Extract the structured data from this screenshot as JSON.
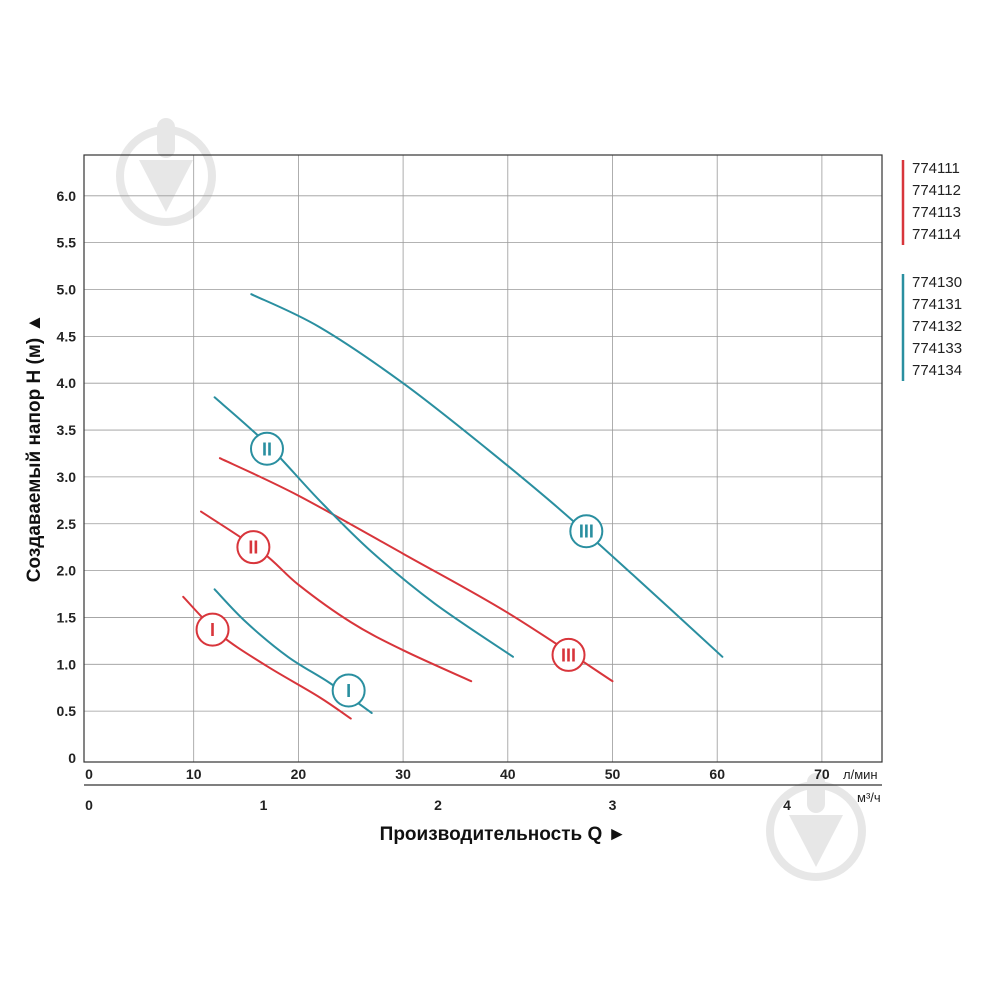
{
  "chart_data": {
    "type": "line",
    "ylabel": "Создаваемый напор H (м) ▲",
    "xlabel": "Производительность Q ►",
    "x_unit_primary": "л/мин",
    "x_unit_secondary": "м³/ч",
    "xlim": [
      0,
      76
    ],
    "ylim": [
      0,
      6.5
    ],
    "grid": true,
    "y_ticks": [
      "0",
      "0.5",
      "1.0",
      "1.5",
      "2.0",
      "2.5",
      "3.0",
      "3.5",
      "4.0",
      "4.5",
      "5.0",
      "5.5",
      "6.0"
    ],
    "x_ticks_primary": [
      "0",
      "10",
      "20",
      "30",
      "40",
      "50",
      "60",
      "70"
    ],
    "x_ticks_secondary": [
      {
        "label": "0",
        "value": 0
      },
      {
        "label": "1",
        "value": 16.67
      },
      {
        "label": "2",
        "value": 33.33
      },
      {
        "label": "3",
        "value": 50
      },
      {
        "label": "4",
        "value": 66.67
      }
    ],
    "legend": {
      "position": "right",
      "groups": [
        {
          "color": "#d8353b",
          "items": [
            "774111",
            "774112",
            "774113",
            "774114"
          ]
        },
        {
          "color": "#2a8fa0",
          "items": [
            "774130",
            "774131",
            "774132",
            "774133",
            "774134"
          ]
        }
      ]
    },
    "series": [
      {
        "group": "red",
        "label": "I",
        "color": "#d8353b",
        "points": [
          [
            9,
            1.72
          ],
          [
            12.5,
            1.32
          ],
          [
            17,
            0.98
          ],
          [
            22,
            0.65
          ],
          [
            25,
            0.42
          ]
        ],
        "badge": [
          11.8,
          1.37
        ]
      },
      {
        "group": "red",
        "label": "II",
        "color": "#d8353b",
        "points": [
          [
            10.7,
            2.63
          ],
          [
            16.5,
            2.2
          ],
          [
            20,
            1.85
          ],
          [
            25,
            1.45
          ],
          [
            30,
            1.15
          ],
          [
            36.5,
            0.82
          ]
        ],
        "badge": [
          15.7,
          2.25
        ]
      },
      {
        "group": "red",
        "label": "III",
        "color": "#d8353b",
        "points": [
          [
            12.5,
            3.2
          ],
          [
            20,
            2.8
          ],
          [
            30,
            2.18
          ],
          [
            40,
            1.55
          ],
          [
            50,
            0.82
          ]
        ],
        "badge": [
          45.8,
          1.1
        ]
      },
      {
        "group": "teal",
        "label": "I",
        "color": "#2a8fa0",
        "points": [
          [
            12,
            1.8
          ],
          [
            15,
            1.45
          ],
          [
            19,
            1.08
          ],
          [
            23,
            0.8
          ],
          [
            27,
            0.48
          ]
        ],
        "badge": [
          24.8,
          0.72
        ]
      },
      {
        "group": "teal",
        "label": "II",
        "color": "#2a8fa0",
        "points": [
          [
            12,
            3.85
          ],
          [
            17,
            3.35
          ],
          [
            22,
            2.75
          ],
          [
            27,
            2.2
          ],
          [
            33,
            1.65
          ],
          [
            40.5,
            1.08
          ]
        ],
        "badge": [
          17,
          3.3
        ]
      },
      {
        "group": "teal",
        "label": "III",
        "color": "#2a8fa0",
        "points": [
          [
            15.5,
            4.95
          ],
          [
            22,
            4.6
          ],
          [
            30,
            4.0
          ],
          [
            38,
            3.3
          ],
          [
            45,
            2.65
          ],
          [
            52,
            1.95
          ],
          [
            60.5,
            1.08
          ]
        ],
        "badge": [
          47.5,
          2.42
        ]
      }
    ]
  }
}
